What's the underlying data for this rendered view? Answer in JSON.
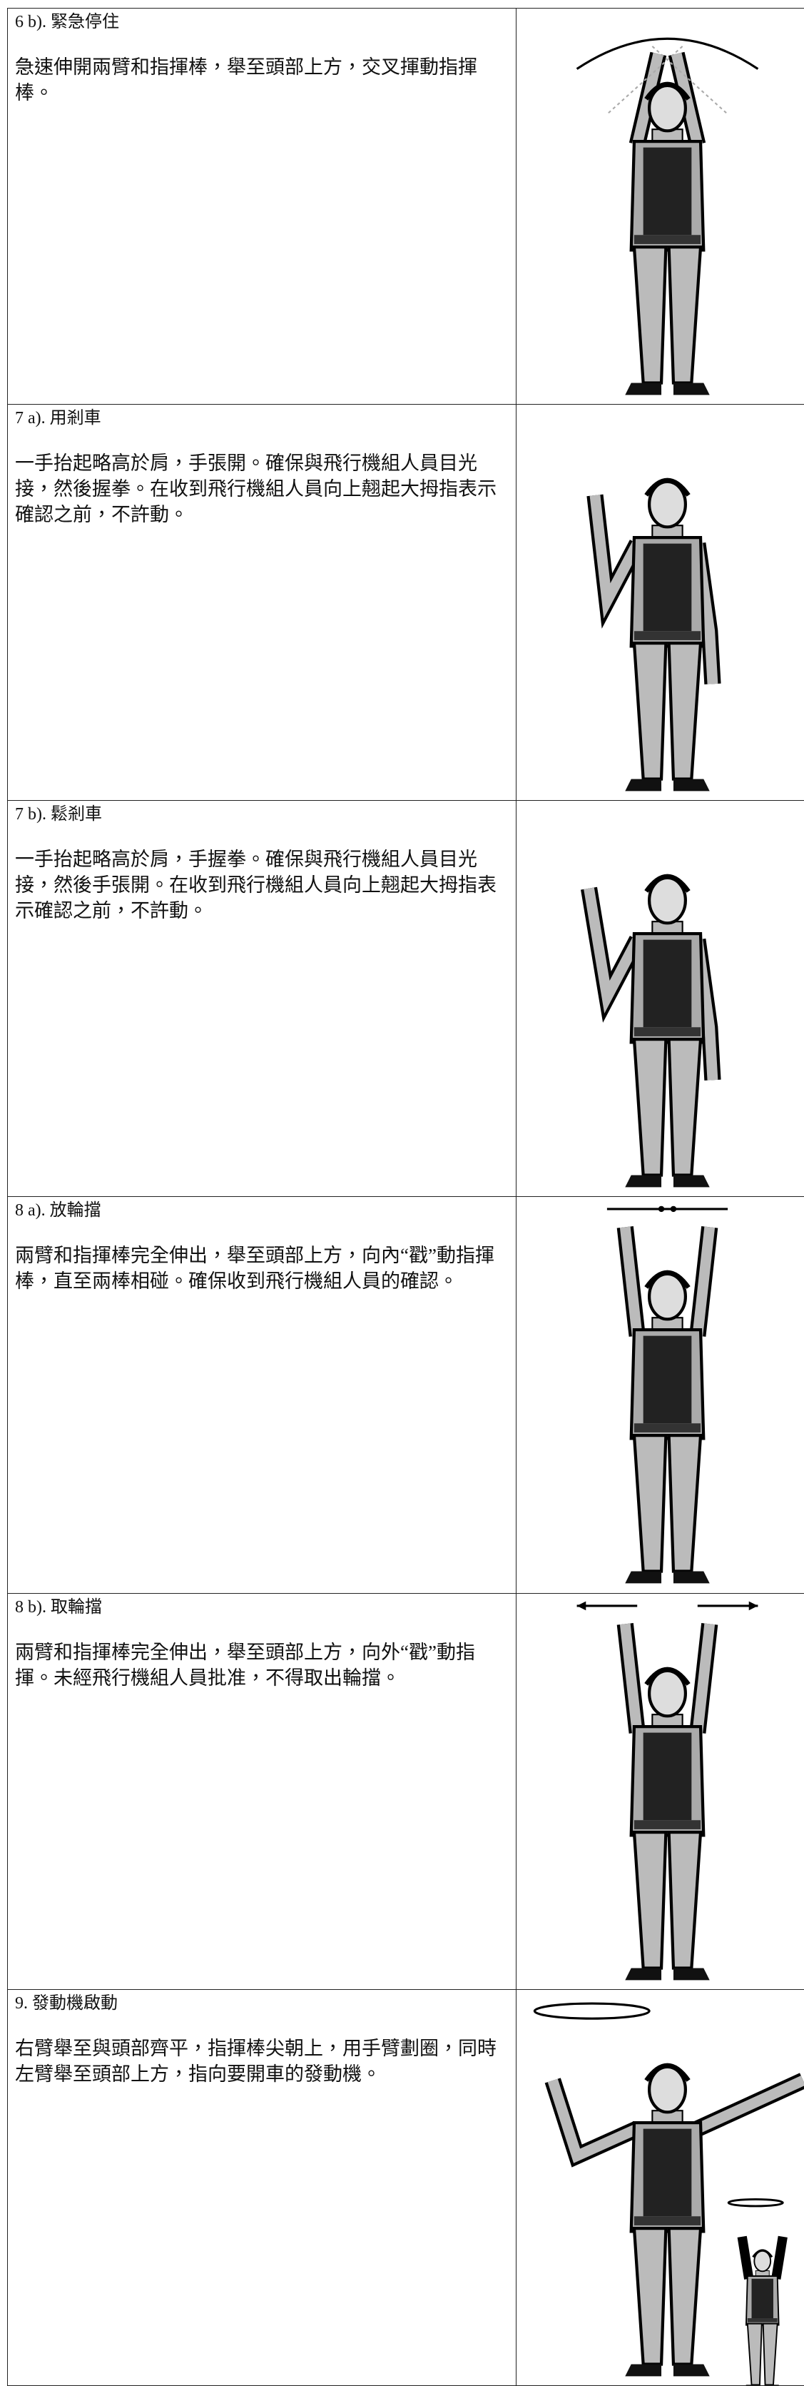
{
  "rows": [
    {
      "title": "6 b).  緊急停住",
      "description": "急速伸開兩臂和指揮棒，舉至頭部上方，交叉揮動指揮棒。"
    },
    {
      "title": "7 a).  用剎車",
      "description": "一手抬起略高於肩，手張開。確保與飛行機組人員目光接，然後握拳。在收到飛行機組人員向上翹起大拇指表示確認之前，不許動。"
    },
    {
      "title": "7 b).  鬆剎車",
      "description": "一手抬起略高於肩，手握拳。確保與飛行機組人員目光接，然後手張開。在收到飛行機組人員向上翹起大拇指表示確認之前，不許動。"
    },
    {
      "title": "8 a).  放輪擋",
      "description": "兩臂和指揮棒完全伸出，舉至頭部上方，向內“戳”動指揮棒，直至兩棒相碰。確保收到飛行機組人員的確認。"
    },
    {
      "title": "8 b).  取輪擋",
      "description": "兩臂和指揮棒完全伸出，舉至頭部上方，向外“戳”動指揮。未經飛行機組人員批准，不得取出輪擋。"
    },
    {
      "title": "9.  發動機啟動",
      "description": "右臂舉至與頭部齊平，指揮棒尖朝上，用手臂劃圈，同時左臂舉至頭部上方，指向要開車的發動機。"
    }
  ]
}
